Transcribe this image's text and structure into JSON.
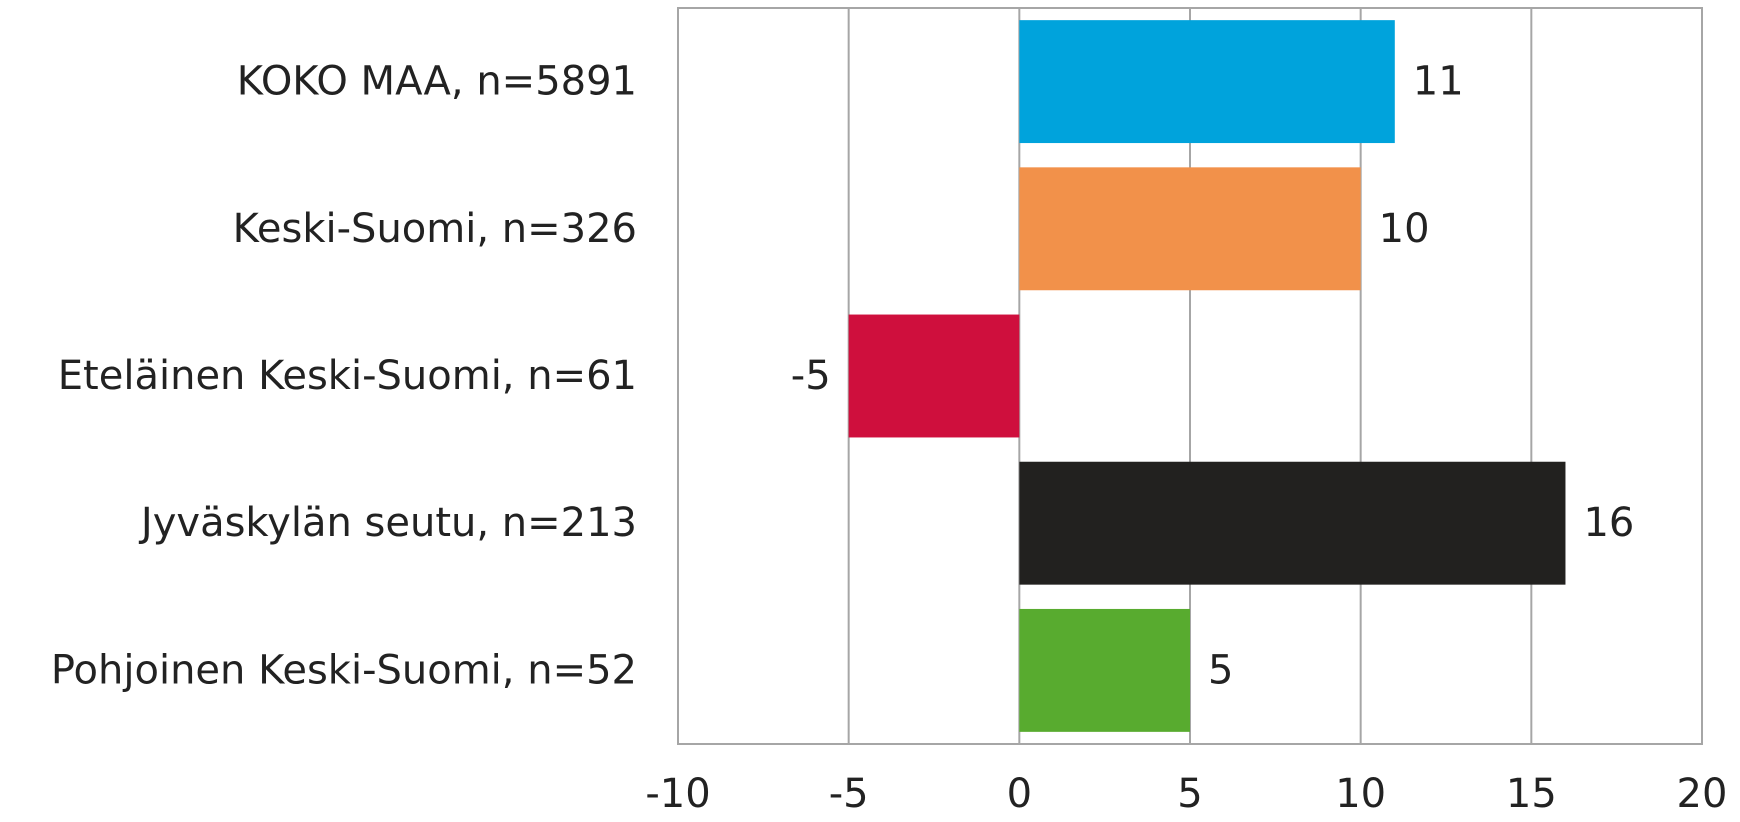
{
  "chart_data": {
    "type": "bar",
    "orientation": "horizontal",
    "categories": [
      "KOKO MAA, n=5891",
      "Keski-Suomi, n=326",
      "Eteläinen Keski-Suomi, n=61",
      "Jyväskylän seutu, n=213",
      "Pohjoinen Keski-Suomi, n=52"
    ],
    "values": [
      11,
      10,
      -5,
      16,
      5
    ],
    "data_labels": [
      "11",
      "10",
      "-5",
      "16",
      "5"
    ],
    "colors": [
      "#00a3dc",
      "#f2914a",
      "#cf0f3d",
      "#22211f",
      "#58ab2f"
    ],
    "xlim": [
      -10,
      20
    ],
    "xticks": [
      -10,
      -5,
      0,
      5,
      10,
      15,
      20
    ],
    "xtick_labels": [
      "-10",
      "-5",
      "0",
      "5",
      "10",
      "15",
      "20"
    ],
    "grid": true,
    "legend": "none"
  }
}
